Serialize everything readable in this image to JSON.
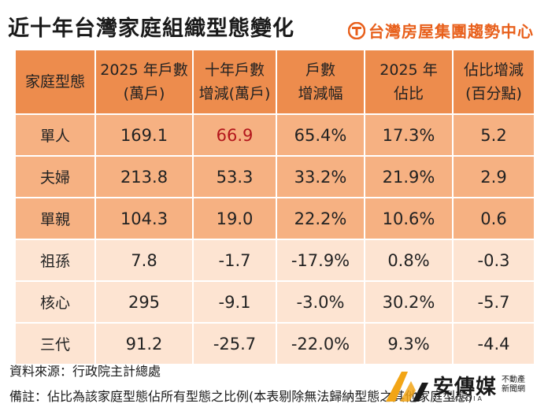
{
  "title": "近十年台灣家庭組織型態變化",
  "brand": {
    "name": "台灣房屋集團趨勢中心",
    "logo_icon": "taiwan-realty-logo",
    "color": "#e8601c"
  },
  "table": {
    "headers": [
      {
        "lines": [
          "家庭型態"
        ]
      },
      {
        "lines": [
          "2025 年戶數",
          "(萬戶)"
        ]
      },
      {
        "lines": [
          "十年戶數",
          "增減(萬戶)"
        ]
      },
      {
        "lines": [
          "戶數",
          "增減幅"
        ]
      },
      {
        "lines": [
          "2025 年",
          "佔比"
        ]
      },
      {
        "lines": [
          "佔比增減",
          "(百分點)"
        ]
      }
    ],
    "rows": [
      {
        "style": "dark",
        "cells": [
          "單人",
          "169.1",
          "66.9",
          "65.4%",
          "17.3%",
          "5.2"
        ],
        "highlight_col": 2
      },
      {
        "style": "dark",
        "cells": [
          "夫婦",
          "213.8",
          "53.3",
          "33.2%",
          "21.9%",
          "2.9"
        ]
      },
      {
        "style": "dark",
        "cells": [
          "單親",
          "104.3",
          "19.0",
          "22.2%",
          "10.6%",
          "0.6"
        ]
      },
      {
        "style": "light",
        "cells": [
          "祖孫",
          "7.8",
          "-1.7",
          "-17.9%",
          "0.8%",
          "-0.3"
        ]
      },
      {
        "style": "light",
        "cells": [
          "核心",
          "295",
          "-9.1",
          "-3.0%",
          "30.2%",
          "-5.7"
        ]
      },
      {
        "style": "light",
        "cells": [
          "三代",
          "91.2",
          "-25.7",
          "-22.0%",
          "9.3%",
          "-4.4"
        ]
      }
    ],
    "colors": {
      "header": "#ed8c4d",
      "dark_row": "#f6b182",
      "light_row": "#fde4d2",
      "highlight": "#b3161c"
    }
  },
  "footnotes": {
    "source": "資料來源：行政院主計總處",
    "note": "備註：佔比為該家庭型態佔所有型態之比例(本表剔除無法歸納型態之其他家庭型態)"
  },
  "watermark": {
    "name": "安傳媒",
    "side_top": "不動產",
    "side_bottom": "新聞網",
    "en": "MEDIA",
    "logo_icon": "an-media-logo"
  }
}
